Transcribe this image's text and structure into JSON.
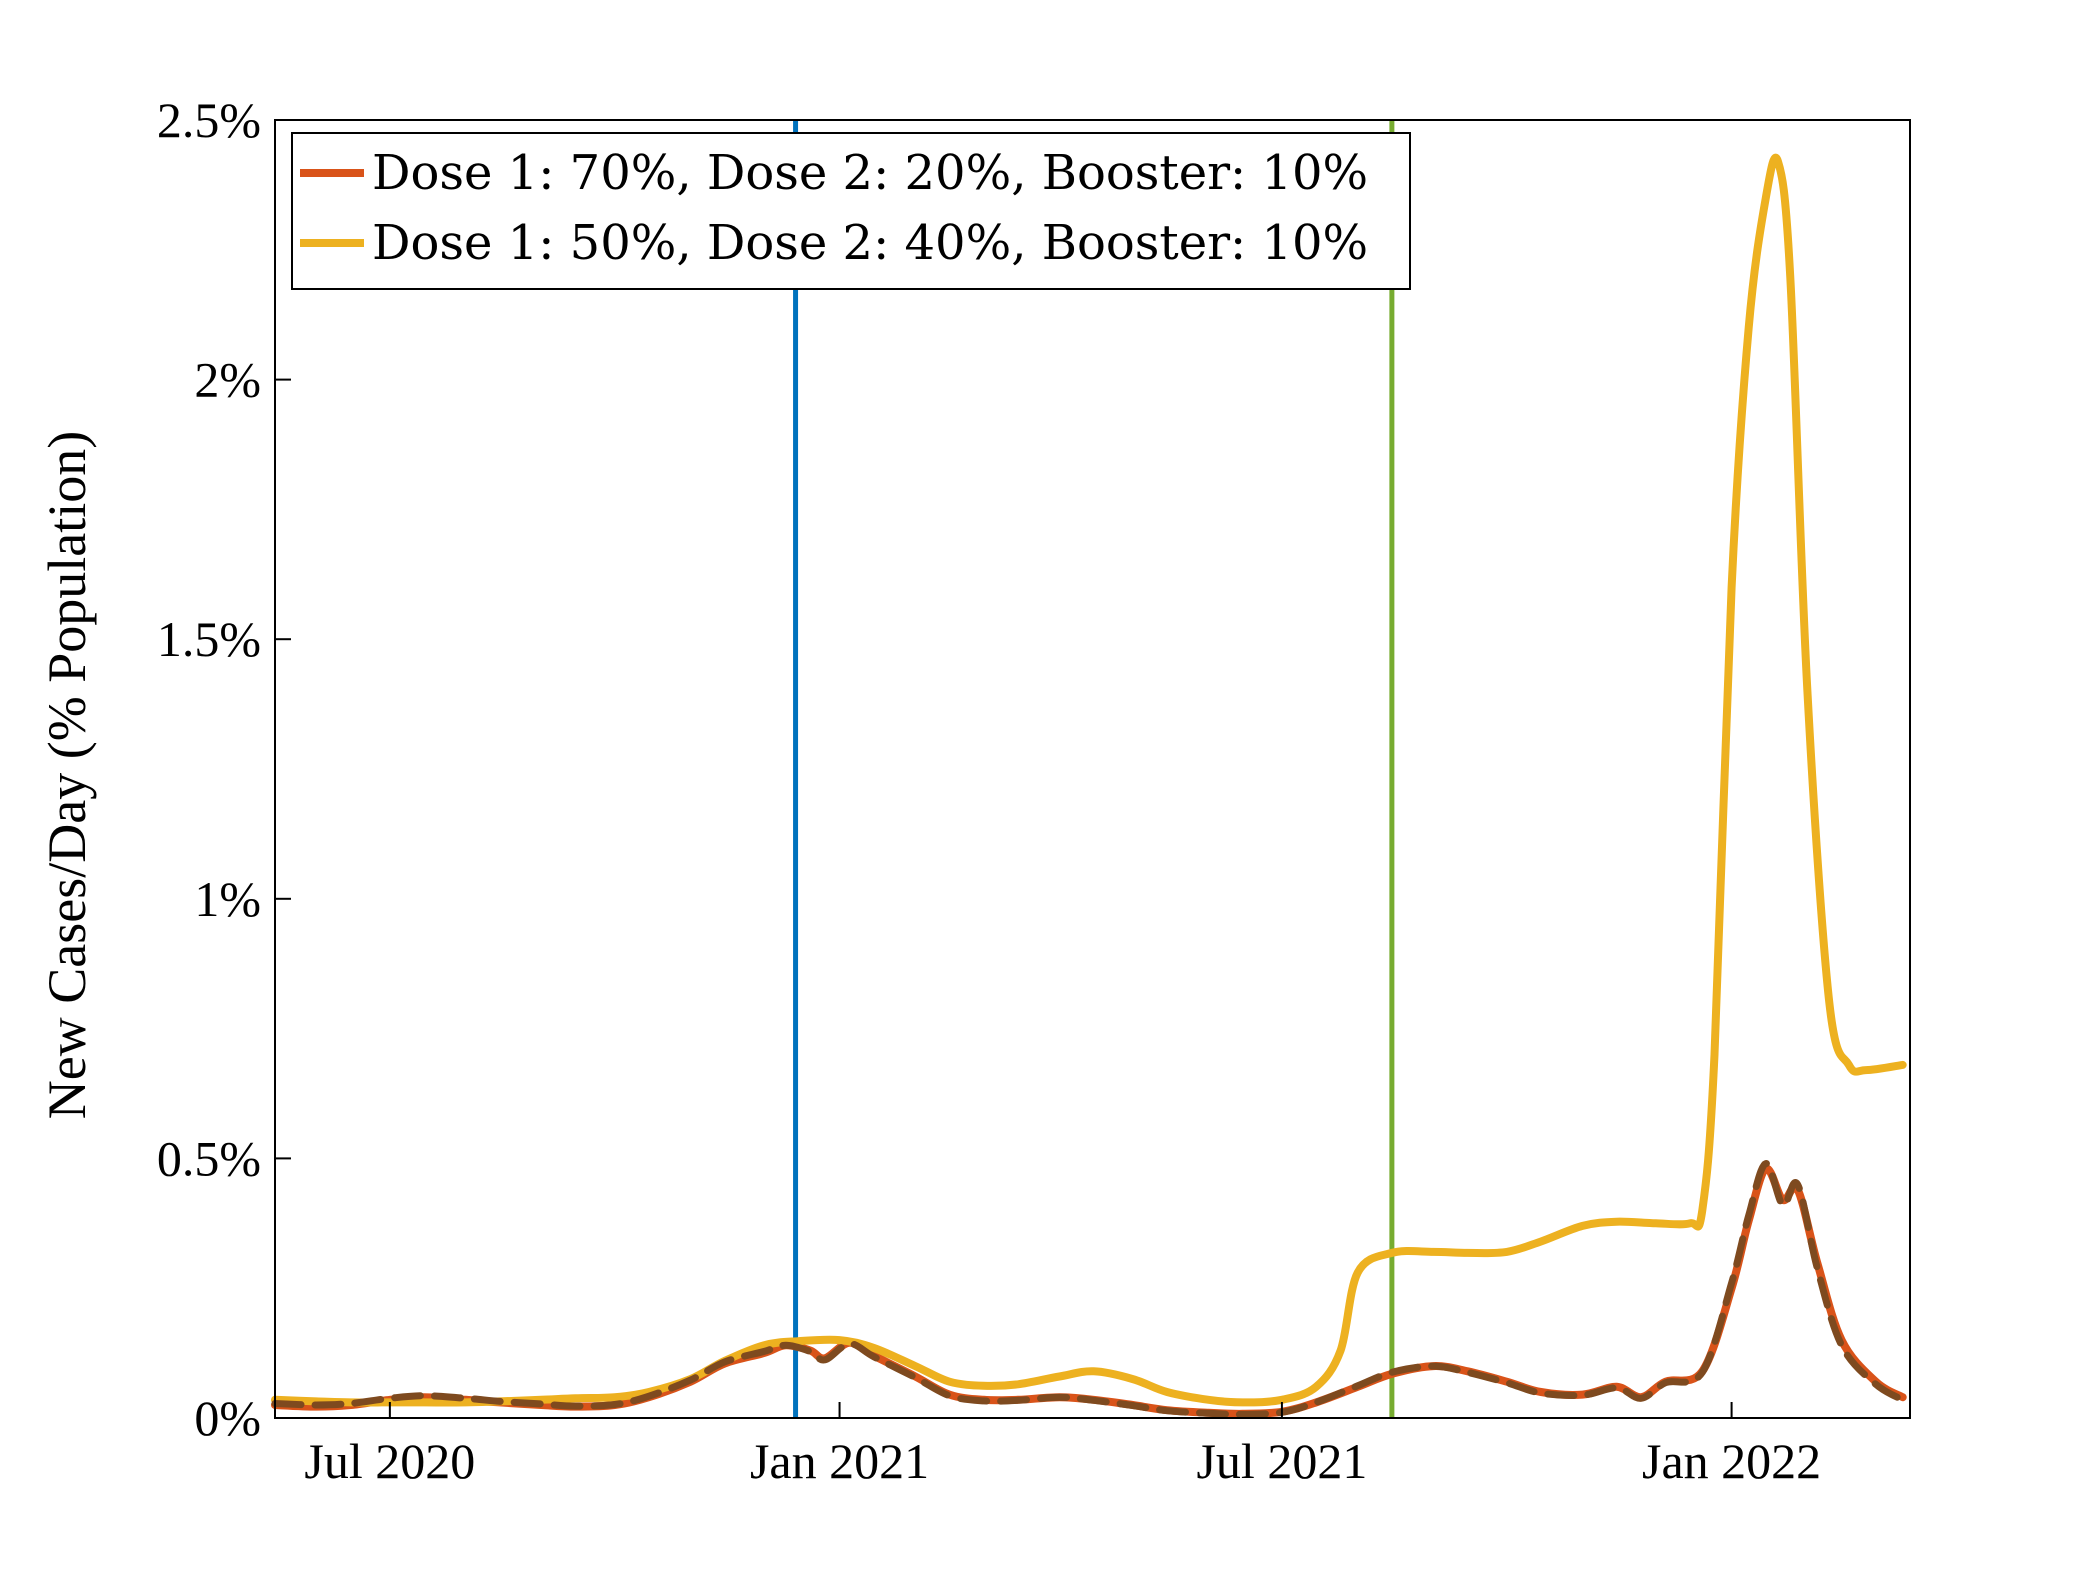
{
  "chart_data": {
    "type": "line",
    "title": "",
    "xlabel": "",
    "ylabel": "New Cases/Day (% Population)",
    "xlim": [
      "2020-05-15",
      "2022-03-15"
    ],
    "ylim": [
      0,
      2.5
    ],
    "x_ticks": [
      {
        "date": "2020-07-01",
        "label": "Jul 2020"
      },
      {
        "date": "2021-01-01",
        "label": "Jan 2021"
      },
      {
        "date": "2021-07-01",
        "label": "Jul 2021"
      },
      {
        "date": "2022-01-01",
        "label": "Jan 2022"
      }
    ],
    "y_ticks": [
      {
        "value": 0,
        "label": "0%"
      },
      {
        "value": 0.5,
        "label": "0.5%"
      },
      {
        "value": 1,
        "label": "1%"
      },
      {
        "value": 1.5,
        "label": "1.5%"
      },
      {
        "value": 2,
        "label": "2%"
      },
      {
        "value": 2.5,
        "label": "2.5%"
      }
    ],
    "grid": false,
    "legend_position": "top-left",
    "vertical_lines": [
      {
        "date": "2020-12-14",
        "color": "#0072BD"
      },
      {
        "date": "2021-08-15",
        "color": "#77AC30"
      }
    ],
    "series": [
      {
        "name": "Dose 1: 70%, Dose 2: 20%, Booster: 10%",
        "color": "#D95319",
        "style": "solid",
        "in_legend": true,
        "points": [
          [
            "2020-05-15",
            0.025
          ],
          [
            "2020-06-01",
            0.022
          ],
          [
            "2020-06-15",
            0.025
          ],
          [
            "2020-07-01",
            0.035
          ],
          [
            "2020-07-15",
            0.04
          ],
          [
            "2020-08-01",
            0.035
          ],
          [
            "2020-08-15",
            0.03
          ],
          [
            "2020-09-01",
            0.025
          ],
          [
            "2020-09-15",
            0.022
          ],
          [
            "2020-10-01",
            0.025
          ],
          [
            "2020-10-15",
            0.04
          ],
          [
            "2020-11-01",
            0.07
          ],
          [
            "2020-11-15",
            0.105
          ],
          [
            "2020-12-01",
            0.125
          ],
          [
            "2020-12-10",
            0.14
          ],
          [
            "2020-12-20",
            0.13
          ],
          [
            "2020-12-26",
            0.115
          ],
          [
            "2021-01-05",
            0.145
          ],
          [
            "2021-01-15",
            0.12
          ],
          [
            "2021-02-01",
            0.08
          ],
          [
            "2021-02-15",
            0.045
          ],
          [
            "2021-03-01",
            0.035
          ],
          [
            "2021-03-15",
            0.035
          ],
          [
            "2021-04-01",
            0.04
          ],
          [
            "2021-04-15",
            0.035
          ],
          [
            "2021-05-01",
            0.025
          ],
          [
            "2021-05-15",
            0.015
          ],
          [
            "2021-06-01",
            0.01
          ],
          [
            "2021-06-15",
            0.008
          ],
          [
            "2021-07-01",
            0.012
          ],
          [
            "2021-07-15",
            0.03
          ],
          [
            "2021-08-01",
            0.06
          ],
          [
            "2021-08-15",
            0.085
          ],
          [
            "2021-09-01",
            0.1
          ],
          [
            "2021-09-15",
            0.09
          ],
          [
            "2021-10-01",
            0.07
          ],
          [
            "2021-10-15",
            0.05
          ],
          [
            "2021-11-01",
            0.045
          ],
          [
            "2021-11-15",
            0.06
          ],
          [
            "2021-11-25",
            0.04
          ],
          [
            "2021-12-05",
            0.07
          ],
          [
            "2021-12-20",
            0.09
          ],
          [
            "2022-01-01",
            0.25
          ],
          [
            "2022-01-08",
            0.38
          ],
          [
            "2022-01-15",
            0.48
          ],
          [
            "2022-01-22",
            0.42
          ],
          [
            "2022-01-28",
            0.44
          ],
          [
            "2022-02-05",
            0.3
          ],
          [
            "2022-02-15",
            0.15
          ],
          [
            "2022-03-01",
            0.07
          ],
          [
            "2022-03-12",
            0.04
          ]
        ]
      },
      {
        "name": "Dose 1: 50%, Dose 2: 40%, Booster: 10%",
        "color": "#EDB120",
        "style": "solid",
        "in_legend": true,
        "points": [
          [
            "2020-05-15",
            0.035
          ],
          [
            "2020-06-01",
            0.032
          ],
          [
            "2020-06-15",
            0.03
          ],
          [
            "2020-07-01",
            0.03
          ],
          [
            "2020-07-15",
            0.03
          ],
          [
            "2020-08-01",
            0.03
          ],
          [
            "2020-08-15",
            0.032
          ],
          [
            "2020-09-01",
            0.035
          ],
          [
            "2020-09-15",
            0.038
          ],
          [
            "2020-10-01",
            0.04
          ],
          [
            "2020-10-15",
            0.05
          ],
          [
            "2020-11-01",
            0.075
          ],
          [
            "2020-11-15",
            0.11
          ],
          [
            "2020-12-01",
            0.14
          ],
          [
            "2020-12-15",
            0.148
          ],
          [
            "2021-01-01",
            0.15
          ],
          [
            "2021-01-15",
            0.135
          ],
          [
            "2021-02-01",
            0.1
          ],
          [
            "2021-02-15",
            0.07
          ],
          [
            "2021-03-01",
            0.062
          ],
          [
            "2021-03-15",
            0.065
          ],
          [
            "2021-04-01",
            0.08
          ],
          [
            "2021-04-15",
            0.09
          ],
          [
            "2021-05-01",
            0.075
          ],
          [
            "2021-05-15",
            0.05
          ],
          [
            "2021-06-01",
            0.035
          ],
          [
            "2021-06-15",
            0.03
          ],
          [
            "2021-07-01",
            0.035
          ],
          [
            "2021-07-15",
            0.06
          ],
          [
            "2021-07-25",
            0.13
          ],
          [
            "2021-08-01",
            0.28
          ],
          [
            "2021-08-15",
            0.318
          ],
          [
            "2021-09-01",
            0.32
          ],
          [
            "2021-09-15",
            0.318
          ],
          [
            "2021-10-01",
            0.32
          ],
          [
            "2021-10-15",
            0.34
          ],
          [
            "2021-11-01",
            0.37
          ],
          [
            "2021-11-15",
            0.378
          ],
          [
            "2021-12-01",
            0.375
          ],
          [
            "2021-12-15",
            0.375
          ],
          [
            "2021-12-20",
            0.4
          ],
          [
            "2021-12-25",
            0.7
          ],
          [
            "2022-01-01",
            1.6
          ],
          [
            "2022-01-08",
            2.1
          ],
          [
            "2022-01-15",
            2.35
          ],
          [
            "2022-01-20",
            2.42
          ],
          [
            "2022-01-25",
            2.2
          ],
          [
            "2022-02-01",
            1.4
          ],
          [
            "2022-02-10",
            0.8
          ],
          [
            "2022-02-18",
            0.68
          ],
          [
            "2022-02-25",
            0.67
          ],
          [
            "2022-03-12",
            0.68
          ]
        ]
      },
      {
        "name": "",
        "color": "#7E4A1F",
        "style": "dashed",
        "in_legend": false,
        "points": [
          [
            "2020-05-15",
            0.028
          ],
          [
            "2020-06-01",
            0.025
          ],
          [
            "2020-06-15",
            0.028
          ],
          [
            "2020-07-01",
            0.038
          ],
          [
            "2020-07-15",
            0.043
          ],
          [
            "2020-08-01",
            0.038
          ],
          [
            "2020-08-15",
            0.032
          ],
          [
            "2020-09-01",
            0.027
          ],
          [
            "2020-09-15",
            0.023
          ],
          [
            "2020-10-01",
            0.026
          ],
          [
            "2020-10-15",
            0.042
          ],
          [
            "2020-11-01",
            0.073
          ],
          [
            "2020-11-15",
            0.108
          ],
          [
            "2020-12-01",
            0.128
          ],
          [
            "2020-12-10",
            0.14
          ],
          [
            "2020-12-20",
            0.128
          ],
          [
            "2020-12-26",
            0.112
          ],
          [
            "2021-01-05",
            0.143
          ],
          [
            "2021-01-15",
            0.118
          ],
          [
            "2021-02-01",
            0.078
          ],
          [
            "2021-02-15",
            0.043
          ],
          [
            "2021-03-01",
            0.033
          ],
          [
            "2021-03-15",
            0.034
          ],
          [
            "2021-04-01",
            0.04
          ],
          [
            "2021-04-15",
            0.034
          ],
          [
            "2021-05-01",
            0.024
          ],
          [
            "2021-05-15",
            0.014
          ],
          [
            "2021-06-01",
            0.009
          ],
          [
            "2021-06-15",
            0.007
          ],
          [
            "2021-07-01",
            0.011
          ],
          [
            "2021-07-15",
            0.03
          ],
          [
            "2021-08-01",
            0.062
          ],
          [
            "2021-08-15",
            0.088
          ],
          [
            "2021-09-01",
            0.1
          ],
          [
            "2021-09-15",
            0.088
          ],
          [
            "2021-10-01",
            0.068
          ],
          [
            "2021-10-15",
            0.048
          ],
          [
            "2021-11-01",
            0.044
          ],
          [
            "2021-11-15",
            0.058
          ],
          [
            "2021-11-25",
            0.038
          ],
          [
            "2021-12-05",
            0.068
          ],
          [
            "2021-12-20",
            0.088
          ],
          [
            "2022-01-01",
            0.26
          ],
          [
            "2022-01-08",
            0.39
          ],
          [
            "2022-01-15",
            0.49
          ],
          [
            "2022-01-22",
            0.41
          ],
          [
            "2022-01-28",
            0.45
          ],
          [
            "2022-02-05",
            0.29
          ],
          [
            "2022-02-15",
            0.14
          ],
          [
            "2022-03-01",
            0.065
          ],
          [
            "2022-03-12",
            0.035
          ]
        ]
      }
    ]
  }
}
